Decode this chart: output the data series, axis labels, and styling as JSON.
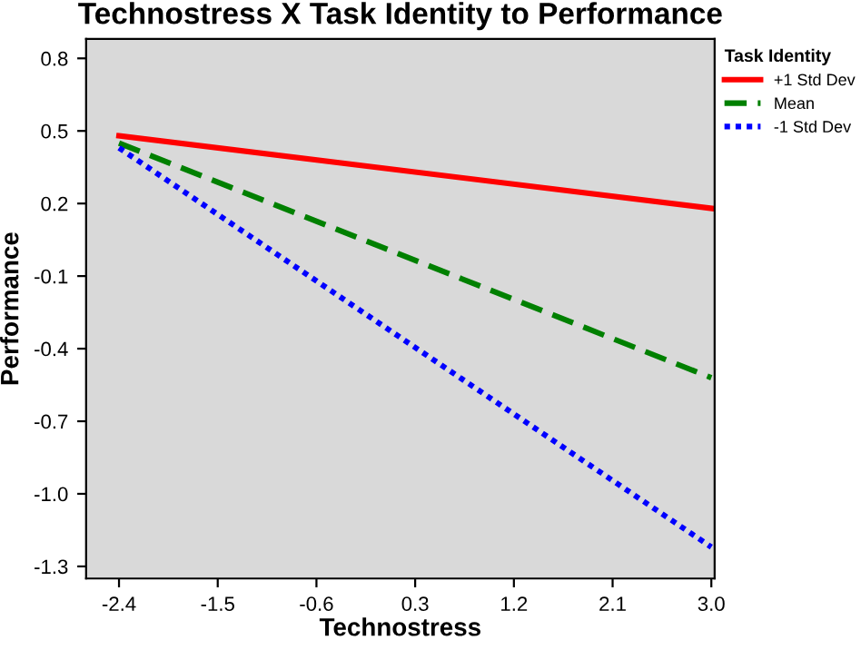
{
  "chart_data": {
    "type": "line",
    "title": "Technostress X Task Identity to Performance",
    "xlabel": "Technostress",
    "ylabel": "Performance",
    "legend_title": "Task Identity",
    "x": [
      -2.4,
      3.0
    ],
    "series": [
      {
        "name": "+1 Std Dev",
        "color": "#ff0000",
        "line_style": "solid",
        "values": [
          0.48,
          0.18
        ]
      },
      {
        "name": "Mean",
        "color": "#008000",
        "line_style": "dashed",
        "values": [
          0.45,
          -0.52
        ]
      },
      {
        "name": "-1 Std Dev",
        "color": "#0000ff",
        "line_style": "dotted",
        "values": [
          0.43,
          -1.22
        ]
      }
    ],
    "xlim": [
      -2.7,
      3.03
    ],
    "ylim": [
      -1.35,
      0.88
    ],
    "xticks": [
      -2.4,
      -1.5,
      -0.6,
      0.3,
      1.2,
      2.1,
      {
        "value": 3,
        "label": "3.0"
      }
    ],
    "yticks": [
      0.8,
      0.5,
      0.2,
      -0.1,
      -0.4,
      -0.7,
      {
        "value": -1,
        "label": "-1.0"
      },
      -1.3
    ],
    "grid": false,
    "legend": "right",
    "marker": "none"
  }
}
